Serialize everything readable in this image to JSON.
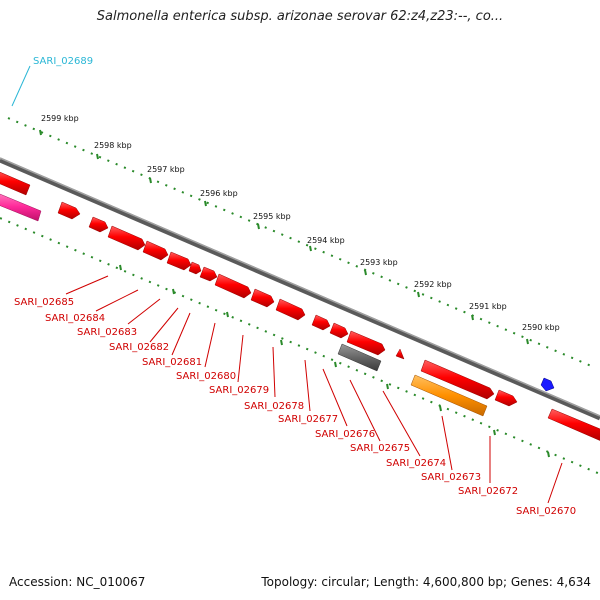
{
  "header": {
    "title": "Salmonella enterica subsp. arizonae serovar 62:z4,z23:--, co..."
  },
  "footer": {
    "accession": "Accession: NC_010067",
    "summary": "Topology: circular; Length: 4,600,800 bp; Genes: 4,634"
  },
  "map": {
    "scale_labels": [
      "2599 kbp",
      "2598 kbp",
      "2597 kbp",
      "2596 kbp",
      "2595 kbp",
      "2594 kbp",
      "2593 kbp",
      "2592 kbp",
      "2591 kbp",
      "2590 kbp"
    ],
    "top_gene_label": "SARI_02689",
    "bottom_gene_labels": [
      "SARI_02685",
      "SARI_02684",
      "SARI_02683",
      "SARI_02682",
      "SARI_02681",
      "SARI_02680",
      "SARI_02679",
      "SARI_02678",
      "SARI_02677",
      "SARI_02676",
      "SARI_02675",
      "SARI_02674",
      "SARI_02673",
      "SARI_02672",
      "SARI_02670"
    ],
    "colors": {
      "gene_red": "#ff0000",
      "gene_pink": "#ff2a9a",
      "gene_gray": "#666666",
      "gene_orange": "#ff9000",
      "gene_blue": "#1a1aff",
      "backbone": "#808080",
      "tick_green": "#2a8a2a",
      "label_red": "#d00000",
      "label_cyan": "#2bb7d6"
    }
  }
}
